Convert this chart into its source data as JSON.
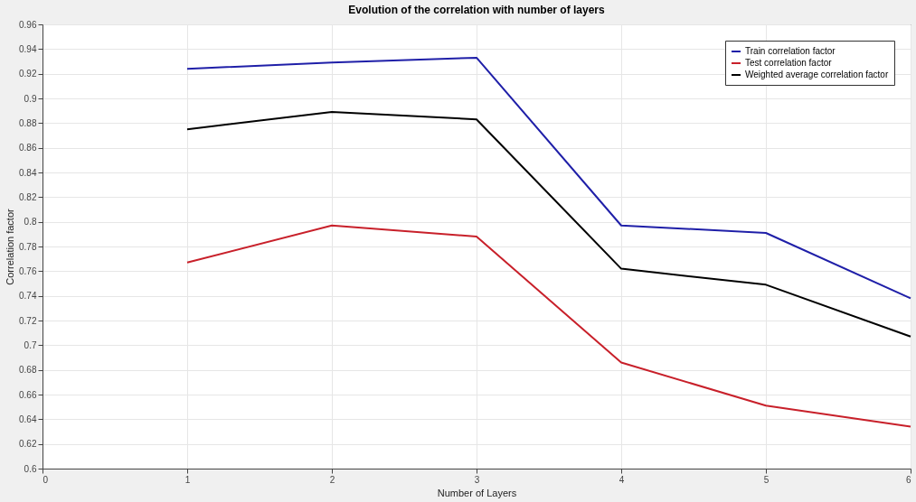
{
  "chart_data": {
    "type": "line",
    "title": "Evolution of the correlation with number of layers",
    "xlabel": "Number of Layers",
    "ylabel": "Correlation factor",
    "x": [
      1,
      2,
      3,
      4,
      5,
      6
    ],
    "series": [
      {
        "name": "Train correlation factor",
        "color": "#1f1fa8",
        "values": [
          0.924,
          0.929,
          0.933,
          0.797,
          0.791,
          0.738
        ]
      },
      {
        "name": "Test correlation factor",
        "color": "#c8202a",
        "values": [
          0.767,
          0.797,
          0.788,
          0.686,
          0.651,
          0.634
        ]
      },
      {
        "name": "Weighted average correlation factor",
        "color": "#000000",
        "values": [
          0.875,
          0.889,
          0.883,
          0.762,
          0.749,
          0.707
        ]
      }
    ],
    "xlim": [
      0,
      6
    ],
    "xticks": [
      0,
      1,
      2,
      3,
      4,
      5,
      6
    ],
    "ylim": [
      0.6,
      0.96
    ],
    "yticks": [
      0.6,
      0.62,
      0.64,
      0.66,
      0.68,
      0.7,
      0.72,
      0.74,
      0.76,
      0.78,
      0.8,
      0.82,
      0.84,
      0.86,
      0.88,
      0.9,
      0.92,
      0.94,
      0.96
    ],
    "grid": true,
    "legend": "top right",
    "marker": "none",
    "line_style": "solid"
  }
}
